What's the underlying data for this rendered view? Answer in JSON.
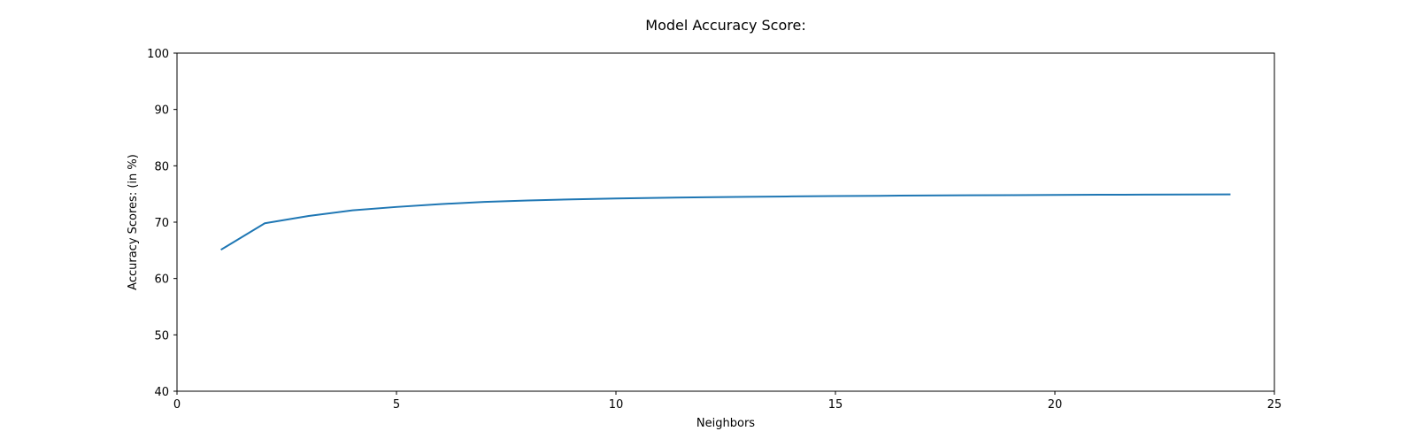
{
  "chart_data": {
    "type": "line",
    "title": "Model Accuracy Score:",
    "xlabel": "Neighbors",
    "ylabel": "Accuracy Scores: (in %)",
    "xlim": [
      0,
      25
    ],
    "ylim": [
      40,
      100
    ],
    "xticks": [
      0,
      5,
      10,
      15,
      20,
      25
    ],
    "yticks": [
      40,
      50,
      60,
      70,
      80,
      90,
      100
    ],
    "grid": false,
    "legend": "none",
    "series": [
      {
        "color": "#1f77b4",
        "x": [
          1,
          2,
          3,
          4,
          5,
          6,
          7,
          8,
          9,
          10,
          11,
          12,
          13,
          14,
          15,
          16,
          17,
          18,
          19,
          20,
          21,
          22,
          23,
          24
        ],
        "y": [
          65.1,
          69.8,
          71.1,
          72.1,
          72.7,
          73.2,
          73.6,
          73.85,
          74.05,
          74.2,
          74.32,
          74.42,
          74.5,
          74.57,
          74.63,
          74.68,
          74.73,
          74.77,
          74.8,
          74.83,
          74.86,
          74.88,
          74.9,
          74.92
        ]
      }
    ]
  }
}
